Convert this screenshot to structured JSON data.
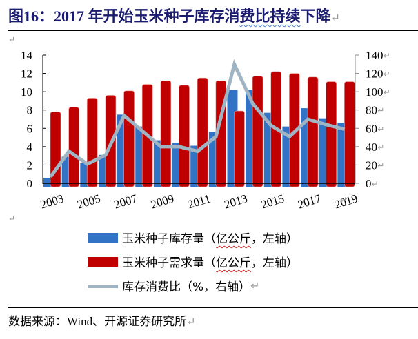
{
  "title": {
    "prefix": "图16：2017 年开始玉米种子库存消",
    "squiggle": "费比持续",
    "suffix": "下降",
    "para_mark": "↵"
  },
  "legend": [
    {
      "label_pre": "玉米种子库存量（",
      "label_wavy": "亿公斤",
      "label_post": "，左轴）",
      "color": "#3273c5",
      "type": "bar"
    },
    {
      "label_pre": "玉米种子需求量（",
      "label_wavy": "亿公斤",
      "label_post": "，左轴）",
      "color": "#c00000",
      "type": "bar"
    },
    {
      "label_pre": "库存消费比（%，右轴）",
      "label_wavy": "",
      "label_post": "",
      "color": "#9fb5c4",
      "type": "line"
    }
  ],
  "source": "数据来源：Wind、开源证券研究所",
  "colors": {
    "inventory": "#3273c5",
    "demand": "#c00000",
    "ratio": "#9fb5c4",
    "title": "#1a1a6e"
  },
  "chart_data": {
    "type": "bar",
    "title": "2017 年开始玉米种子库存消费比持续下降",
    "categories": [
      "2003",
      "2004",
      "2005",
      "2006",
      "2007",
      "2008",
      "2009",
      "2010",
      "2011",
      "2012",
      "2013",
      "2014",
      "2015",
      "2016",
      "2017",
      "2018",
      "2019"
    ],
    "x_tick_labels": [
      "2003",
      "2005",
      "2007",
      "2009",
      "2011",
      "2013",
      "2015",
      "2017",
      "2019"
    ],
    "series": [
      {
        "name": "玉米种子库存量（亿公斤，左轴）",
        "type": "bar",
        "axis": "left",
        "values": [
          0.6,
          2.9,
          2.2,
          3.1,
          7.5,
          6.2,
          4.7,
          4.4,
          4.1,
          5.6,
          10.2,
          10.2,
          7.7,
          6.2,
          8.2,
          7.1,
          6.6
        ]
      },
      {
        "name": "玉米种子需求量（亿公斤，左轴）",
        "type": "bar",
        "axis": "left",
        "values": [
          7.8,
          8.3,
          9.3,
          9.6,
          10.1,
          10.8,
          11.2,
          10.7,
          11.5,
          11.2,
          7.9,
          11.7,
          12.2,
          12.0,
          11.6,
          11.1,
          11.1
        ]
      },
      {
        "name": "库存消费比（%，右轴）",
        "type": "line",
        "axis": "right",
        "values": [
          7,
          35,
          21,
          31,
          74,
          57,
          40,
          40,
          35,
          51,
          130,
          87,
          63,
          51,
          70,
          64,
          59
        ]
      }
    ],
    "y_left": {
      "ticks": [
        0,
        2,
        4,
        6,
        8,
        10,
        12,
        14
      ],
      "range": [
        0,
        14
      ],
      "label": ""
    },
    "y_right": {
      "ticks": [
        0,
        20,
        40,
        60,
        80,
        100,
        120,
        140
      ],
      "range": [
        0,
        140
      ],
      "label": ""
    },
    "xlabel": "",
    "ylabel": "",
    "grid": false,
    "legend_position": "bottom"
  }
}
